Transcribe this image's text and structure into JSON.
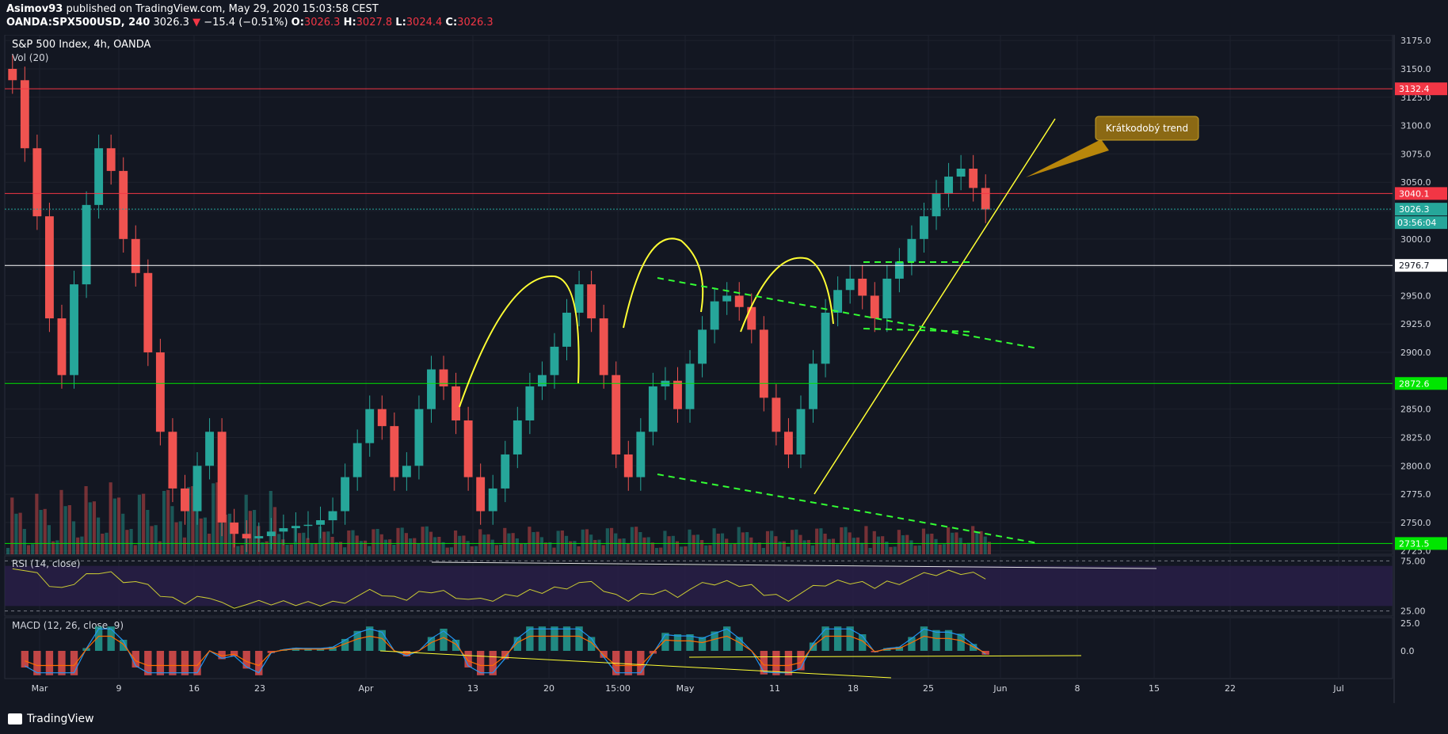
{
  "header": {
    "publisher_line_user": "Asimov93",
    "publisher_line_rest": "published on TradingView.com, May 29, 2020 15:03:58 CEST",
    "symbol": "OANDA:SPX500USD, 240",
    "last": "3026.3",
    "change": "−15.4 (−0.51%)",
    "o_label": "O:",
    "o": "3026.3",
    "h_label": "H:",
    "h": "3027.8",
    "l_label": "L:",
    "l": "3024.4",
    "c_label": "C:",
    "c": "3026.3"
  },
  "colors": {
    "background": "#131722",
    "bull": "#26a69a",
    "bear": "#ef5350",
    "resistance": "#f23645",
    "support": "#00e600",
    "drawing_yellow": "#ffff33",
    "drawing_green": "#33ff33",
    "rsi": "#cccc33",
    "rsi_band": "#2a1f4a",
    "macd_line": "#2196f3",
    "signal_line": "#ff6d00"
  },
  "footer": {
    "brand": "TradingView",
    "icon": "tradingview-logo-icon"
  },
  "chart_data": [
    {
      "type": "candlestick",
      "title": "S&P 500 Index, 4h, OANDA",
      "volume_label": "Vol (20)",
      "x_ticks": [
        "Mar",
        "9",
        "16",
        "23",
        "Apr",
        "13",
        "20",
        "15:00",
        "May",
        "11",
        "18",
        "25",
        "Jun",
        "8",
        "15",
        "22",
        "Jul"
      ],
      "y_ticks": [
        2725,
        2750,
        2775,
        2800,
        2825,
        2850,
        2875,
        2900,
        2925,
        2950,
        2975,
        3000,
        3025,
        3050,
        3075,
        3100,
        3125,
        3150,
        3175
      ],
      "ylim": [
        2722,
        3180
      ],
      "series_approx_close": [
        3140,
        3080,
        3020,
        2930,
        2880,
        2960,
        3030,
        3080,
        3060,
        3000,
        2970,
        2900,
        2830,
        2780,
        2760,
        2800,
        2830,
        2750,
        2740,
        2736,
        2738,
        2742,
        2745,
        2747,
        2748,
        2752,
        2760,
        2790,
        2820,
        2850,
        2835,
        2790,
        2800,
        2850,
        2885,
        2870,
        2840,
        2790,
        2760,
        2780,
        2810,
        2840,
        2870,
        2880,
        2905,
        2935,
        2960,
        2930,
        2880,
        2810,
        2790,
        2830,
        2870,
        2875,
        2850,
        2890,
        2920,
        2945,
        2950,
        2940,
        2920,
        2860,
        2830,
        2810,
        2850,
        2890,
        2935,
        2955,
        2965,
        2950,
        2930,
        2965,
        2980,
        3000,
        3020,
        3040,
        3055,
        3062,
        3045,
        3026
      ],
      "levels": [
        {
          "value": 3132.4,
          "label": "3132.4",
          "color": "#f23645"
        },
        {
          "value": 3040.1,
          "label": "3040.1",
          "color": "#f23645"
        },
        {
          "value": 3026.3,
          "label": "3026.3",
          "color": "#26a69a"
        },
        {
          "value": 2976.7,
          "label": "2976.7",
          "color": "#ffffff"
        },
        {
          "value": 2872.6,
          "label": "2872.6",
          "color": "#00e600"
        },
        {
          "value": 2731.5,
          "label": "2731.5",
          "color": "#00e600"
        }
      ],
      "countdown": "03:56:04",
      "annotation": "Krátkodobý trend"
    },
    {
      "type": "line",
      "title": "RSI (14, close)",
      "y_ticks": [
        75.0,
        25.0
      ],
      "ylim": [
        20,
        80
      ],
      "band": [
        30,
        70
      ]
    },
    {
      "type": "histogram",
      "title": "MACD (12, 26, close, 9)",
      "y_ticks": [
        25.0,
        0.0
      ],
      "ylim": [
        -25,
        30
      ]
    }
  ]
}
